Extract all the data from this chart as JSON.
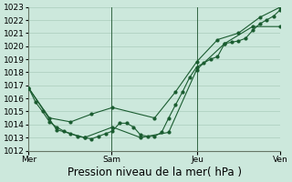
{
  "background_color": "#cce8dc",
  "plot_bg_color": "#cce8dc",
  "grid_color": "#aaccbb",
  "line_color": "#1a5c30",
  "marker_color": "#1a5c30",
  "ylim": [
    1012,
    1023
  ],
  "yticks": [
    1012,
    1013,
    1014,
    1015,
    1016,
    1017,
    1018,
    1019,
    1020,
    1021,
    1022,
    1023
  ],
  "xlabel": "Pression niveau de la mer( hPa )",
  "xlabel_fontsize": 8.5,
  "tick_fontsize": 6.5,
  "xtick_labels": [
    "Mer",
    "Sam",
    "Jeu",
    "Ven"
  ],
  "xtick_positions": [
    0.0,
    0.33,
    0.67,
    1.0
  ],
  "vline_positions": [
    0.0,
    0.33,
    0.67,
    1.0
  ],
  "vline_color": "#336644",
  "series_detail_x": [
    0.0,
    0.028,
    0.055,
    0.083,
    0.111,
    0.139,
    0.167,
    0.194,
    0.222,
    0.25,
    0.278,
    0.306,
    0.333,
    0.361,
    0.389,
    0.417,
    0.444,
    0.472,
    0.5,
    0.528,
    0.556,
    0.583,
    0.611,
    0.639,
    0.667,
    0.694,
    0.722,
    0.75,
    0.778,
    0.806,
    0.833,
    0.861,
    0.889,
    0.917,
    0.944,
    0.972,
    1.0
  ],
  "series_detail_y": [
    1016.8,
    1015.7,
    1015.0,
    1014.2,
    1013.8,
    1013.5,
    1013.3,
    1013.1,
    1013.0,
    1012.9,
    1013.1,
    1013.3,
    1013.5,
    1014.1,
    1014.1,
    1013.8,
    1013.2,
    1013.1,
    1013.1,
    1013.4,
    1014.5,
    1015.5,
    1016.5,
    1017.6,
    1018.4,
    1018.7,
    1019.0,
    1019.2,
    1020.2,
    1020.3,
    1020.4,
    1020.6,
    1021.2,
    1021.7,
    1022.0,
    1022.3,
    1022.8
  ],
  "series_upper_x": [
    0.0,
    0.083,
    0.167,
    0.25,
    0.333,
    0.5,
    0.583,
    0.667,
    0.75,
    0.833,
    0.917,
    1.0
  ],
  "series_upper_y": [
    1016.8,
    1014.5,
    1014.2,
    1014.8,
    1015.3,
    1014.5,
    1016.5,
    1018.8,
    1020.5,
    1021.0,
    1022.2,
    1023.0
  ],
  "series_lower_x": [
    0.0,
    0.111,
    0.222,
    0.333,
    0.444,
    0.556,
    0.667,
    0.778,
    0.889,
    1.0
  ],
  "series_lower_y": [
    1016.8,
    1013.6,
    1013.0,
    1013.8,
    1013.0,
    1013.4,
    1018.2,
    1020.2,
    1021.5,
    1021.5
  ]
}
